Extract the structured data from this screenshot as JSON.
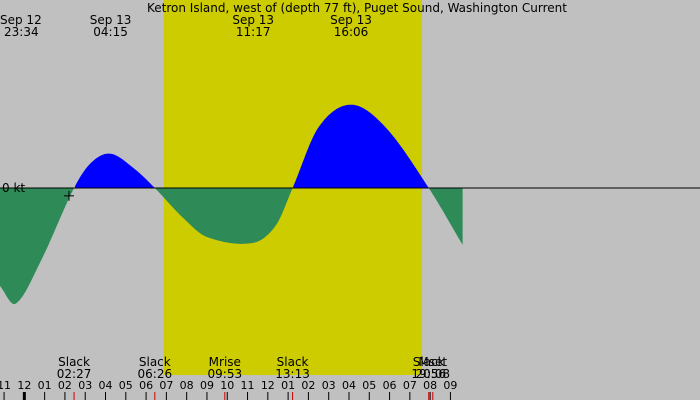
{
  "title": "Ketron Island, west of (depth 77 ft), Puget Sound, Washington Current",
  "chart_data": {
    "type": "area",
    "title": "Ketron Island, west of (depth 77 ft), Puget Sound, Washington Current",
    "ylabel": "0 kt",
    "x_range_hours": [
      -1.2,
      33.3
    ],
    "y_range_kt": [
      -1.25,
      1.0
    ],
    "daylight_hours": [
      30.87,
      43.6
    ],
    "grid": false,
    "colors": {
      "background": "#c0c0c0",
      "daylight": "#cccc00",
      "flood": "#0000ff",
      "ebb": "#2e8b57",
      "moon_marker": "#cc0000"
    },
    "extremes": [
      {
        "date": "Sep 12",
        "time": "23:34",
        "hour": -0.43,
        "kt": -1.18
      },
      {
        "date": "Sep 13",
        "time": "04:15",
        "hour": 4.25,
        "kt": 0.35
      },
      {
        "date": "Sep 13",
        "time": "11:17",
        "hour": 11.28,
        "kt": -0.56
      },
      {
        "date": "Sep 13",
        "time": "16:06",
        "hour": 16.1,
        "kt": 0.85
      }
    ],
    "events": [
      {
        "name": "Slack",
        "time": "02:27",
        "hour": 2.45
      },
      {
        "name": "Slack",
        "time": "06:26",
        "hour": 6.43
      },
      {
        "name": "Mrise",
        "time": "09:53",
        "hour": 9.88
      },
      {
        "name": "Slack",
        "time": "13:13",
        "hour": 13.22
      },
      {
        "name": "Slack",
        "time": "19:56",
        "hour": 19.93
      },
      {
        "name": "Mset",
        "time": "20:08",
        "hour": 20.13
      }
    ],
    "curve": [
      {
        "h": -1.2,
        "kt": -1.0
      },
      {
        "h": -0.43,
        "kt": -1.18
      },
      {
        "h": 0.8,
        "kt": -0.75
      },
      {
        "h": 2.45,
        "kt": 0.0
      },
      {
        "h": 3.3,
        "kt": 0.26
      },
      {
        "h": 4.25,
        "kt": 0.35
      },
      {
        "h": 5.4,
        "kt": 0.2
      },
      {
        "h": 6.43,
        "kt": 0.0
      },
      {
        "h": 7.8,
        "kt": -0.3
      },
      {
        "h": 9.0,
        "kt": -0.5
      },
      {
        "h": 11.28,
        "kt": -0.56
      },
      {
        "h": 12.4,
        "kt": -0.38
      },
      {
        "h": 13.22,
        "kt": 0.0
      },
      {
        "h": 14.5,
        "kt": 0.62
      },
      {
        "h": 16.1,
        "kt": 0.85
      },
      {
        "h": 17.8,
        "kt": 0.62
      },
      {
        "h": 19.93,
        "kt": 0.0
      },
      {
        "h": 21.6,
        "kt": -0.58
      }
    ],
    "hour_ticks": [
      {
        "label": "11",
        "hour": -1
      },
      {
        "label": "12",
        "hour": 0
      },
      {
        "label": "01",
        "hour": 1
      },
      {
        "label": "02",
        "hour": 2
      },
      {
        "label": "03",
        "hour": 3
      },
      {
        "label": "04",
        "hour": 4
      },
      {
        "label": "05",
        "hour": 5
      },
      {
        "label": "06",
        "hour": 6
      },
      {
        "label": "07",
        "hour": 7
      },
      {
        "label": "08",
        "hour": 8
      },
      {
        "label": "09",
        "hour": 9
      },
      {
        "label": "10",
        "hour": 10
      },
      {
        "label": "11",
        "hour": 11
      },
      {
        "label": "12",
        "hour": 12
      },
      {
        "label": "01",
        "hour": 13
      },
      {
        "label": "02",
        "hour": 14
      },
      {
        "label": "03",
        "hour": 15
      },
      {
        "label": "04",
        "hour": 16
      },
      {
        "label": "05",
        "hour": 17
      },
      {
        "label": "06",
        "hour": 18
      },
      {
        "label": "07",
        "hour": 19
      },
      {
        "label": "08",
        "hour": 20
      },
      {
        "label": "09",
        "hour": 21
      }
    ],
    "current_time_marker": {
      "hour": 2.2,
      "kt": -0.08
    }
  }
}
